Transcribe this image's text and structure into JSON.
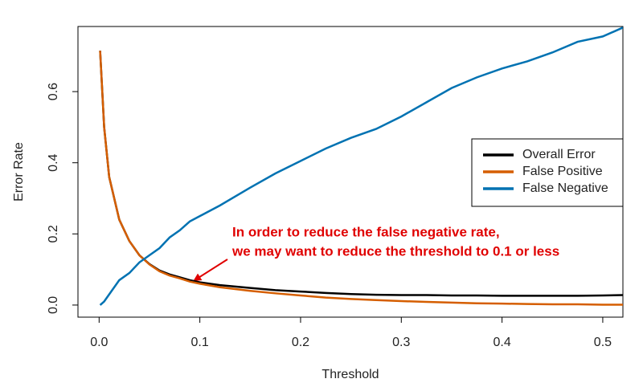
{
  "chart_data": {
    "type": "line",
    "x_label": "Threshold",
    "y_label": "Error Rate",
    "x": [
      0.001,
      0.005,
      0.01,
      0.02,
      0.03,
      0.04,
      0.05,
      0.06,
      0.07,
      0.08,
      0.09,
      0.1,
      0.12,
      0.15,
      0.175,
      0.2,
      0.225,
      0.25,
      0.275,
      0.3,
      0.325,
      0.35,
      0.375,
      0.4,
      0.425,
      0.45,
      0.475,
      0.5,
      0.52
    ],
    "series": [
      {
        "name": "Overall Error",
        "color": "#000000",
        "values": [
          0.715,
          0.5,
          0.36,
          0.24,
          0.18,
          0.14,
          0.115,
          0.097,
          0.086,
          0.078,
          0.07,
          0.064,
          0.056,
          0.048,
          0.042,
          0.038,
          0.034,
          0.031,
          0.029,
          0.028,
          0.028,
          0.027,
          0.027,
          0.026,
          0.026,
          0.026,
          0.026,
          0.027,
          0.028
        ]
      },
      {
        "name": "False Positive",
        "color": "#d55e00",
        "values": [
          0.715,
          0.5,
          0.36,
          0.24,
          0.18,
          0.14,
          0.114,
          0.095,
          0.083,
          0.075,
          0.066,
          0.06,
          0.05,
          0.04,
          0.033,
          0.027,
          0.021,
          0.017,
          0.014,
          0.011,
          0.009,
          0.007,
          0.005,
          0.004,
          0.003,
          0.002,
          0.002,
          0.001,
          0.001
        ]
      },
      {
        "name": "False Negative",
        "color": "#0072b2",
        "values": [
          0.0,
          0.01,
          0.03,
          0.07,
          0.09,
          0.12,
          0.14,
          0.16,
          0.19,
          0.21,
          0.235,
          0.25,
          0.28,
          0.33,
          0.37,
          0.405,
          0.44,
          0.47,
          0.495,
          0.53,
          0.57,
          0.61,
          0.64,
          0.665,
          0.685,
          0.71,
          0.74,
          0.755,
          0.78
        ]
      }
    ],
    "xlim": [
      -0.021,
      0.52
    ],
    "ylim": [
      -0.034,
      0.783
    ],
    "xticks": [
      {
        "value": 0,
        "label": "0.0"
      },
      0.1,
      0.2,
      0.3,
      0.4,
      0.5
    ],
    "yticks": [
      {
        "value": 0,
        "label": "0.0"
      },
      0.2,
      0.4,
      0.6
    ],
    "legend": "right",
    "annotation": [
      "In order to reduce the false negative rate,",
      "we may want to reduce the threshold to 0.1 or less"
    ],
    "annotation_color": "#e00000"
  }
}
